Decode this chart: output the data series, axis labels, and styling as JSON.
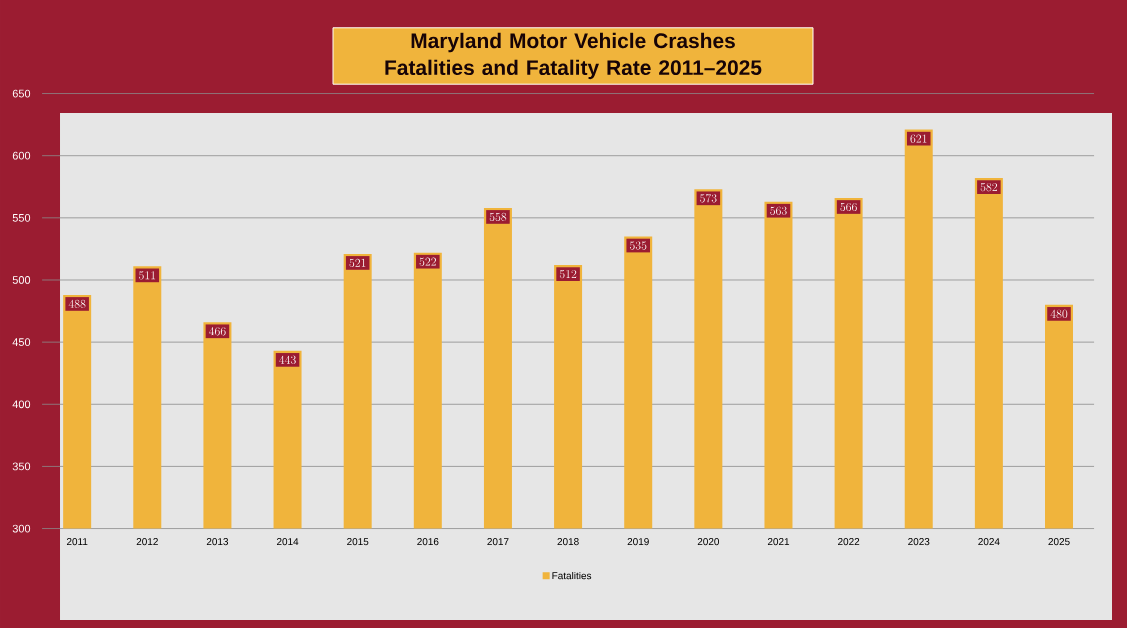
{
  "chart_data": {
    "type": "bar",
    "title": "Maryland Motor Vehicle Crashes Fatalities and Fatality Rate 2011–2025",
    "categories": [
      "2011",
      "2012",
      "2013",
      "2014",
      "2015",
      "2016",
      "2017",
      "2018",
      "2019",
      "2020",
      "2021",
      "2022",
      "2023",
      "2024",
      "2025"
    ],
    "series": [
      {
        "name": "Fatalities",
        "color": "#f0b43c",
        "values": [
          488,
          511,
          466,
          443,
          521,
          522,
          558,
          512,
          535,
          573,
          563,
          566,
          621,
          582,
          480
        ]
      }
    ],
    "ylim": [
      300,
      650
    ],
    "yticks": [
      300,
      350,
      400,
      450,
      500,
      550,
      600,
      650
    ],
    "grid": "y",
    "legend": "bottom",
    "data_labels": true
  }
}
